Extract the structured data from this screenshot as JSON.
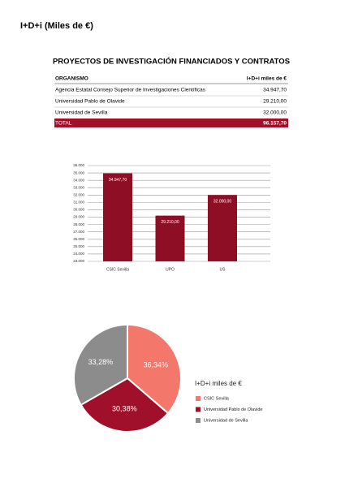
{
  "header": {
    "title": "I+D+i (Miles de €)"
  },
  "section_title": "PROYECTOS DE INVESTIGACIÓN FINANCIADOS Y CONTRATOS",
  "table": {
    "header": [
      "ORGANISMO",
      "I+D+i miles de €"
    ],
    "rows": [
      [
        "Agencia Estatal Consejo Superior de Investigaciones Científicas",
        "34.947,70"
      ],
      [
        "Universidad Pablo de Olavide",
        "29.210,00"
      ],
      [
        "Universidad de Sevilla",
        "32.000,00"
      ]
    ],
    "total": [
      "TOTAL",
      "96.157,70"
    ]
  },
  "chart_data": [
    {
      "type": "bar",
      "categories": [
        "CSIC Sevilla",
        "UPO",
        "US"
      ],
      "values": [
        34947.7,
        29210,
        32000
      ],
      "value_labels": [
        "34.947,70",
        "29.210,00",
        "32.000,00"
      ],
      "color": "#8e0f25",
      "ylim": [
        23000,
        36000
      ],
      "yticks": [
        {
          "value": 23000,
          "label": "23.000"
        },
        {
          "value": 24000,
          "label": "24.000"
        },
        {
          "value": 25000,
          "label": "25.000"
        },
        {
          "value": 26000,
          "label": "26.000"
        },
        {
          "value": 27000,
          "label": "27.000"
        },
        {
          "value": 28000,
          "label": "28.000"
        },
        {
          "value": 29000,
          "label": "29.000"
        },
        {
          "value": 30000,
          "label": "30.000"
        },
        {
          "value": 31000,
          "label": "31.000"
        },
        {
          "value": 32000,
          "label": "32.000"
        },
        {
          "value": 33000,
          "label": "33.000"
        },
        {
          "value": 34000,
          "label": "34.000"
        },
        {
          "value": 35000,
          "label": "35.000"
        },
        {
          "value": 36000,
          "label": "36.000"
        }
      ],
      "grid": true
    },
    {
      "type": "pie",
      "legend_title": "I+D+i miles de €",
      "categories": [
        "CSIC Sevilla",
        "Universidad Pablo de Olavide",
        "Universidad de Sevilla"
      ],
      "values": [
        36.34,
        30.38,
        33.28
      ],
      "value_labels": [
        "36,34%",
        "30,38%",
        "33,28%"
      ],
      "colors": [
        "#f4776b",
        "#a0102a",
        "#8c8c8c"
      ]
    }
  ]
}
